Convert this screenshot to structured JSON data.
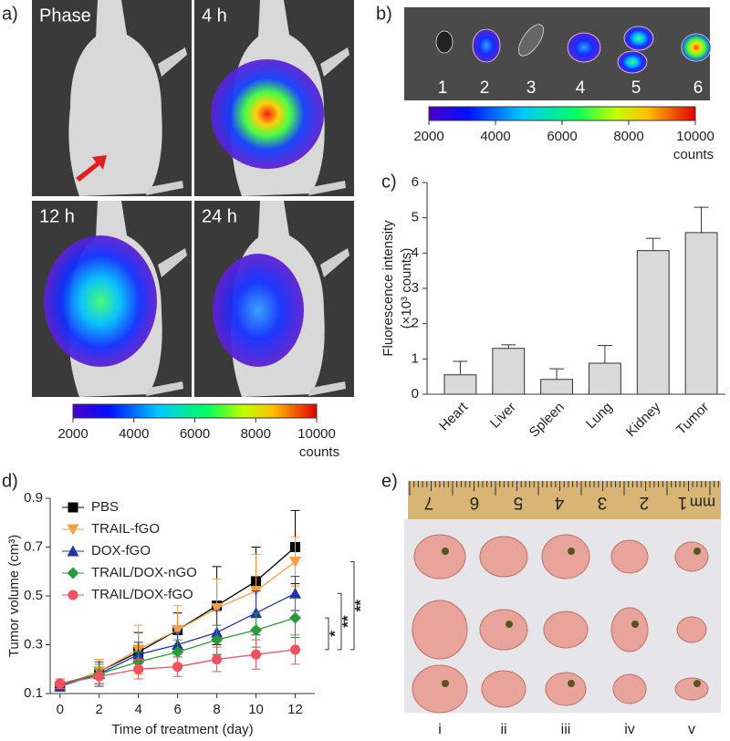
{
  "panel_labels": [
    "a)",
    "b)",
    "c)",
    "d)",
    "e)"
  ],
  "panel_a": {
    "tiles": [
      "Phase",
      "4 h",
      "12 h",
      "24 h"
    ],
    "colorbar": {
      "ticks": [
        2000,
        4000,
        6000,
        8000,
        10000
      ],
      "unit": "counts"
    }
  },
  "panel_b": {
    "organs": [
      "1",
      "2",
      "3",
      "4",
      "5",
      "6"
    ],
    "colorbar": {
      "ticks": [
        2000,
        4000,
        6000,
        8000,
        10000
      ],
      "unit": "counts"
    }
  },
  "panel_e": {
    "ruler": [
      "7",
      "6",
      "5",
      "4",
      "3",
      "2",
      "1"
    ],
    "ruler_unit": "mm",
    "groups": [
      "i",
      "ii",
      "iii",
      "iv",
      "v"
    ]
  },
  "chart_data": [
    {
      "type": "bar",
      "y_label": [
        "Fluorescence intensity",
        "(×10³ counts)"
      ],
      "categories": [
        "Heart",
        "Liver",
        "Spleen",
        "Lung",
        "Kidney",
        "Tumor"
      ],
      "values": [
        0.55,
        1.3,
        0.42,
        0.88,
        4.07,
        4.58
      ],
      "errors": [
        0.38,
        0.1,
        0.3,
        0.5,
        0.35,
        0.72
      ],
      "color": "#d9d9d9",
      "ylim": [
        0,
        6
      ],
      "yticks": [
        0,
        1,
        2,
        3,
        4,
        5,
        6
      ]
    },
    {
      "type": "line",
      "x_label": "Time of treatment (day)",
      "y_label": "Tumor volume (cm³)",
      "x": [
        0,
        2,
        4,
        6,
        8,
        10,
        12
      ],
      "xlim": [
        -0.5,
        13
      ],
      "xticks": [
        0,
        2,
        4,
        6,
        8,
        10,
        12
      ],
      "ylim": [
        0.1,
        0.9
      ],
      "yticks": [
        0.1,
        0.3,
        0.5,
        0.7,
        0.9
      ],
      "legend": "upper left",
      "series": [
        {
          "name": "PBS",
          "color": "#000000",
          "marker": "square",
          "values": [
            0.13,
            0.19,
            0.27,
            0.36,
            0.46,
            0.56,
            0.7
          ],
          "errors": [
            0.02,
            0.05,
            0.08,
            0.07,
            0.16,
            0.14,
            0.15
          ]
        },
        {
          "name": "TRAIL-fGO",
          "color": "#f5a040",
          "marker": "triangle-down",
          "values": [
            0.13,
            0.19,
            0.28,
            0.36,
            0.45,
            0.52,
            0.64
          ],
          "errors": [
            0.02,
            0.05,
            0.1,
            0.1,
            0.12,
            0.15,
            0.1
          ]
        },
        {
          "name": "DOX-fGO",
          "color": "#2233aa",
          "marker": "triangle-up",
          "values": [
            0.13,
            0.18,
            0.26,
            0.3,
            0.35,
            0.43,
            0.51
          ],
          "errors": [
            0.02,
            0.05,
            0.05,
            0.05,
            0.09,
            0.09,
            0.07
          ]
        },
        {
          "name": "TRAIL/DOX-nGO",
          "color": "#2a9a3a",
          "marker": "diamond",
          "values": [
            0.14,
            0.18,
            0.23,
            0.27,
            0.32,
            0.36,
            0.41
          ],
          "errors": [
            0.02,
            0.04,
            0.04,
            0.05,
            0.06,
            0.07,
            0.08
          ]
        },
        {
          "name": "TRAIL/DOX-fGO",
          "color": "#f05060",
          "marker": "circle",
          "values": [
            0.14,
            0.17,
            0.2,
            0.21,
            0.24,
            0.26,
            0.28
          ],
          "errors": [
            0.02,
            0.03,
            0.04,
            0.04,
            0.05,
            0.06,
            0.06
          ]
        }
      ],
      "significance": [
        "*",
        "**",
        "**"
      ]
    }
  ]
}
